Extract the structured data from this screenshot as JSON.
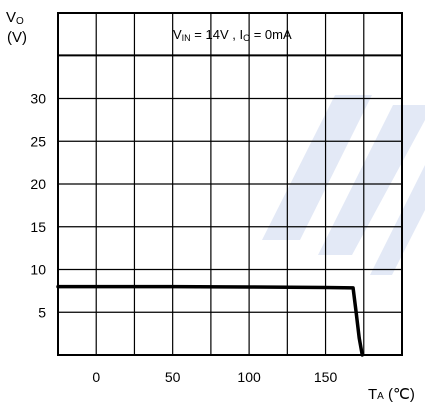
{
  "chart_data": {
    "type": "line",
    "y_title_main": "V",
    "y_title_sub": "O",
    "y_unit": "(V)",
    "x_title_main": "T",
    "x_title_sub": "A",
    "x_unit": " (℃)",
    "condition": {
      "v_main": "V",
      "v_sub": "IN",
      "v_value": " = 14V , I",
      "i_sub": "O",
      "i_value": " = 0mA"
    },
    "xlim": [
      -25,
      200
    ],
    "ylim": [
      0,
      40
    ],
    "x_ticks": [
      0,
      50,
      100,
      150
    ],
    "x_tick_labels": [
      "0",
      "50",
      "100",
      "150"
    ],
    "y_ticks": [
      5,
      10,
      15,
      20,
      25,
      30
    ],
    "y_tick_labels": [
      "5",
      "10",
      "15",
      "20",
      "25",
      "30"
    ],
    "x_grid": [
      0,
      25,
      50,
      75,
      100,
      125,
      150,
      175
    ],
    "y_grid": [
      5,
      10,
      15,
      20,
      25,
      30,
      35
    ],
    "grid": true,
    "series": [
      {
        "x": [
          -25,
          0,
          50,
          100,
          150,
          168,
          170,
          172,
          174
        ],
        "y": [
          8.0,
          8.0,
          8.0,
          7.95,
          7.9,
          7.85,
          5.0,
          2.0,
          0.0
        ]
      }
    ]
  }
}
